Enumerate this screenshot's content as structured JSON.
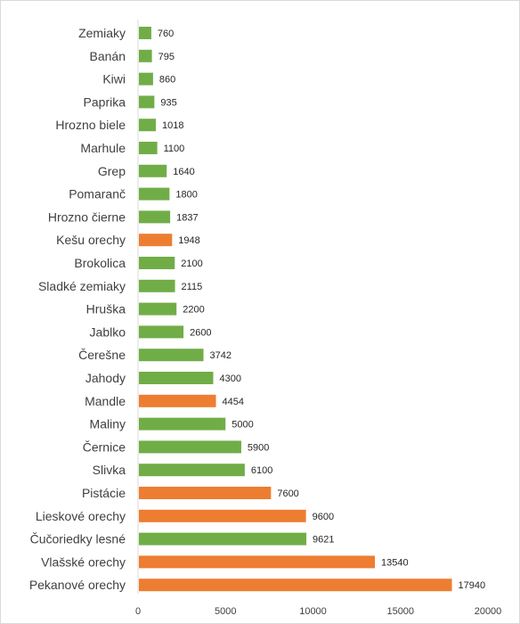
{
  "colors": {
    "green": "#70AD47",
    "orange": "#ED7D31",
    "axis": "#D9D9D9",
    "border": "#D9D9D9"
  },
  "chart_data": {
    "type": "bar",
    "orientation": "horizontal",
    "categories": [
      "Zemiaky",
      "Banán",
      "Kiwi",
      "Paprika",
      "Hrozno biele",
      "Marhule",
      "Grep",
      "Pomaranč",
      "Hrozno čierne",
      "Kešu orechy",
      "Brokolica",
      "Sladké zemiaky",
      "Hruška",
      "Jablko",
      "Čerešne",
      "Jahody",
      "Mandle",
      "Maliny",
      "Černice",
      "Slivka",
      "Pistácie",
      "Lieskové orechy",
      "Čučoriedky lesné",
      "Vlašské orechy",
      "Pekanové orechy"
    ],
    "values": [
      760,
      795,
      860,
      935,
      1018,
      1100,
      1640,
      1800,
      1837,
      1948,
      2100,
      2115,
      2200,
      2600,
      3742,
      4300,
      4454,
      5000,
      5900,
      6100,
      7600,
      9600,
      9621,
      13540,
      17940
    ],
    "bar_colors": [
      "green",
      "green",
      "green",
      "green",
      "green",
      "green",
      "green",
      "green",
      "green",
      "orange",
      "green",
      "green",
      "green",
      "green",
      "green",
      "green",
      "orange",
      "green",
      "green",
      "green",
      "orange",
      "orange",
      "green",
      "orange",
      "orange"
    ],
    "xticks": [
      0,
      5000,
      10000,
      15000,
      20000
    ],
    "xlim": [
      0,
      20000
    ],
    "title": "",
    "xlabel": "",
    "ylabel": "",
    "grid": false,
    "legend": "none"
  }
}
